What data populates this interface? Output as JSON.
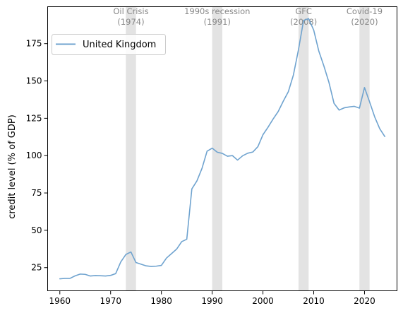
{
  "chart_data": {
    "type": "line",
    "title": "",
    "xlabel": "",
    "ylabel": "credit level (% of GDP)",
    "xlim": [
      1957.6,
      2026.4
    ],
    "ylim": [
      9.5,
      199.7
    ],
    "xticks": [
      1960,
      1970,
      1980,
      1990,
      2000,
      2010,
      2020
    ],
    "yticks": [
      25,
      50,
      75,
      100,
      125,
      150,
      175
    ],
    "grid": false,
    "legend": {
      "placement": "upper-left",
      "entries": [
        "United Kingdom"
      ]
    },
    "line_color": "#6fa3cf",
    "recession_color": "#e3e3e3",
    "recessions": [
      {
        "name": "Oil Crisis",
        "year_label": "(1974)",
        "start": 1973,
        "end": 1975
      },
      {
        "name": "1990s recession",
        "year_label": "(1991)",
        "start": 1990,
        "end": 1992
      },
      {
        "name": "GFC",
        "year_label": "(2008)",
        "start": 2007,
        "end": 2009
      },
      {
        "name": "Covid-19",
        "year_label": "(2020)",
        "start": 2019,
        "end": 2021
      }
    ],
    "series": [
      {
        "name": "United Kingdom",
        "x": [
          1960,
          1961,
          1962,
          1963,
          1964,
          1965,
          1966,
          1967,
          1968,
          1969,
          1970,
          1971,
          1972,
          1973,
          1974,
          1975,
          1976,
          1977,
          1978,
          1979,
          1980,
          1981,
          1982,
          1983,
          1984,
          1985,
          1986,
          1987,
          1988,
          1989,
          1990,
          1991,
          1992,
          1993,
          1994,
          1995,
          1996,
          1997,
          1998,
          1999,
          2000,
          2001,
          2002,
          2003,
          2004,
          2005,
          2006,
          2007,
          2008,
          2009,
          2010,
          2011,
          2012,
          2013,
          2014,
          2015,
          2016,
          2017,
          2018,
          2019,
          2020,
          2021,
          2022,
          2023,
          2024
        ],
        "values": [
          17.5,
          17.8,
          17.8,
          19.5,
          20.7,
          20.5,
          19.4,
          19.7,
          19.6,
          19.4,
          19.8,
          21.0,
          28.8,
          33.8,
          35.5,
          28.4,
          27.3,
          26.2,
          25.8,
          26.0,
          26.5,
          31.4,
          34.4,
          37.4,
          42.4,
          44.0,
          77.7,
          83.1,
          91.5,
          103.0,
          105.0,
          102.3,
          101.5,
          99.6,
          100.0,
          97.0,
          99.9,
          101.6,
          102.4,
          106.0,
          114.0,
          119.0,
          124.5,
          129.5,
          136.4,
          142.8,
          154.0,
          171.0,
          190.5,
          191.7,
          184.0,
          170.0,
          160.0,
          149.0,
          135.0,
          130.5,
          132.0,
          132.6,
          133.0,
          131.8,
          145.6,
          136.0,
          126.0,
          118.0,
          112.8
        ]
      }
    ]
  }
}
